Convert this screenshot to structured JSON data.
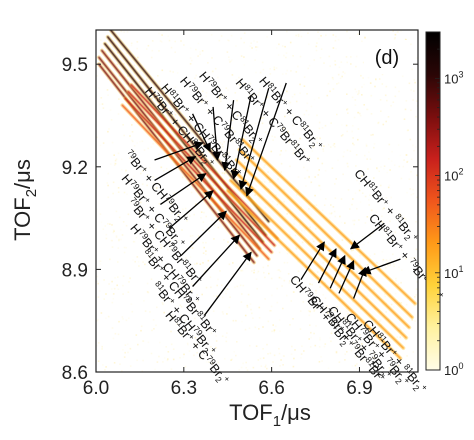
{
  "chart_data": {
    "type": "heatmap",
    "panel_label": "(d)",
    "xlabel": {
      "main": "TOF",
      "sub": "1",
      "unit": "/μs"
    },
    "ylabel": {
      "main": "TOF",
      "sub": "2",
      "unit": "/μs"
    },
    "xlim": [
      6.0,
      7.1
    ],
    "ylim": [
      8.6,
      9.6
    ],
    "x_ticks": [
      "6.0",
      "6.3",
      "6.6",
      "6.9"
    ],
    "y_ticks": [
      "8.6",
      "8.9",
      "9.2",
      "9.5"
    ],
    "x_tick_values": [
      6.0,
      6.3,
      6.6,
      6.9
    ],
    "y_tick_values": [
      8.6,
      8.9,
      9.2,
      9.5
    ],
    "colorbar": {
      "scale": "log",
      "range": [
        1,
        3000
      ],
      "ticks": [
        {
          "base": "10",
          "exp": "0",
          "value": 1
        },
        {
          "base": "10",
          "exp": "1",
          "value": 10
        },
        {
          "base": "10",
          "exp": "2",
          "value": 100
        },
        {
          "base": "10",
          "exp": "3",
          "value": 1000
        }
      ],
      "colors": [
        "#fffde8",
        "#fff2a0",
        "#ffd23a",
        "#ff9a18",
        "#f0561c",
        "#c8201c",
        "#7a0e0e",
        "#2a0606",
        "#000000"
      ]
    },
    "channels": [
      {
        "name": "H81Br+ + C81Br2+",
        "x0": 6.05,
        "y0": 9.6,
        "x1": 6.59,
        "y1": 9.04,
        "intensity": 0.95
      },
      {
        "name": "H81Br+ + C79Br81Br+",
        "x0": 6.04,
        "y0": 9.58,
        "x1": 6.58,
        "y1": 9.0,
        "intensity": 0.9
      },
      {
        "name": "H79Br+ + C81Br2+",
        "x0": 6.03,
        "y0": 9.56,
        "x1": 6.57,
        "y1": 8.98,
        "intensity": 0.9
      },
      {
        "name": "H79Br+ + C79Br81Br+",
        "x0": 6.02,
        "y0": 9.54,
        "x1": 6.56,
        "y1": 8.96,
        "intensity": 0.85
      },
      {
        "name": "H81Br+ + C79Br2+",
        "x0": 6.01,
        "y0": 9.52,
        "x1": 6.55,
        "y1": 8.94,
        "intensity": 0.8
      },
      {
        "name": "H79Br+ + C79Br2+",
        "x0": 6.01,
        "y0": 9.5,
        "x1": 6.54,
        "y1": 8.92,
        "intensity": 0.75
      },
      {
        "name": "79Br+ + CH81Br2+",
        "x0": 6.12,
        "y0": 9.44,
        "x1": 6.62,
        "y1": 8.99,
        "intensity": 0.7
      },
      {
        "name": "79Br+ + CH79Br81Br+",
        "x0": 6.11,
        "y0": 9.42,
        "x1": 6.61,
        "y1": 8.97,
        "intensity": 0.65
      },
      {
        "name": "81Br+ + CH79Br81Br+",
        "x0": 6.1,
        "y0": 9.4,
        "x1": 6.6,
        "y1": 8.95,
        "intensity": 0.6
      },
      {
        "name": "81Br+ + CH79Br2+",
        "x0": 6.09,
        "y0": 9.38,
        "x1": 6.59,
        "y1": 8.93,
        "intensity": 0.55
      },
      {
        "name": "CH81Br+ + 81Br2+",
        "x0": 6.5,
        "y0": 9.28,
        "x1": 7.09,
        "y1": 8.8,
        "intensity": 0.45
      },
      {
        "name": "CH81Br+ + 79Br81Br+",
        "x0": 6.49,
        "y0": 9.25,
        "x1": 7.08,
        "y1": 8.76,
        "intensity": 0.42
      },
      {
        "name": "CH79Br+ + 81Br2+",
        "x0": 6.48,
        "y0": 9.22,
        "x1": 7.07,
        "y1": 8.73,
        "intensity": 0.4
      },
      {
        "name": "CH79Br+ + 79Br81Br+",
        "x0": 6.47,
        "y0": 9.19,
        "x1": 7.06,
        "y1": 8.7,
        "intensity": 0.4
      },
      {
        "name": "CH81Br+ + 79Br2+",
        "x0": 6.46,
        "y0": 9.16,
        "x1": 7.05,
        "y1": 8.67,
        "intensity": 0.38
      },
      {
        "name": "CH79Br+ + 79Br2+",
        "x0": 6.45,
        "y0": 9.13,
        "x1": 7.04,
        "y1": 8.64,
        "intensity": 0.35
      }
    ],
    "annotations": [
      {
        "id": "a1",
        "parts": [
          [
            "H",
            ""
          ],
          [
            "81",
            "sup"
          ],
          [
            "Br",
            ""
          ],
          [
            "+",
            "sup"
          ],
          [
            " + C",
            ""
          ],
          [
            "81",
            "sup"
          ],
          [
            "Br",
            ""
          ],
          [
            "2",
            "sub"
          ],
          [
            "+",
            "sup"
          ]
        ],
        "tx": 6.555,
        "ty": 9.45,
        "rot": 50,
        "ax": 6.65,
        "ay": 9.445,
        "hx": 6.515,
        "hy": 9.115
      },
      {
        "id": "a2",
        "parts": [
          [
            "H",
            ""
          ],
          [
            "81",
            "sup"
          ],
          [
            "Br",
            ""
          ],
          [
            "+",
            "sup"
          ],
          [
            " + C",
            ""
          ],
          [
            "79",
            "sup"
          ],
          [
            "Br",
            ""
          ],
          [
            "81",
            "sup"
          ],
          [
            "Br",
            ""
          ],
          [
            "+",
            "sup"
          ]
        ],
        "tx": 6.475,
        "ty": 9.445,
        "rot": 50,
        "ax": 6.59,
        "ay": 9.43,
        "hx": 6.495,
        "hy": 9.135
      },
      {
        "id": "a3",
        "parts": [
          [
            "H",
            ""
          ],
          [
            "79",
            "sup"
          ],
          [
            "Br",
            ""
          ],
          [
            "+",
            "sup"
          ],
          [
            " + C",
            ""
          ],
          [
            "81",
            "sup"
          ],
          [
            "Br",
            ""
          ],
          [
            "2",
            "sub"
          ],
          [
            "+",
            "sup"
          ]
        ],
        "tx": 6.35,
        "ty": 9.465,
        "rot": 50,
        "ax": 6.53,
        "ay": 9.41,
        "hx": 6.47,
        "hy": 9.165
      },
      {
        "id": "a4",
        "parts": [
          [
            "H",
            ""
          ],
          [
            "79",
            "sup"
          ],
          [
            "Br",
            ""
          ],
          [
            "+",
            "sup"
          ],
          [
            " + C",
            ""
          ],
          [
            "79",
            "sup"
          ],
          [
            "Br",
            ""
          ],
          [
            "81",
            "sup"
          ],
          [
            "Br",
            ""
          ],
          [
            "+",
            "sup"
          ]
        ],
        "tx": 6.285,
        "ty": 9.45,
        "rot": 50,
        "ax": 6.47,
        "ay": 9.395,
        "hx": 6.44,
        "hy": 9.19
      },
      {
        "id": "a5",
        "parts": [
          [
            "H",
            ""
          ],
          [
            "81",
            "sup"
          ],
          [
            "Br",
            ""
          ],
          [
            "+",
            "sup"
          ],
          [
            " + CH",
            ""
          ],
          [
            "79",
            "sup"
          ],
          [
            "Br",
            ""
          ],
          [
            "81",
            "sup"
          ],
          [
            "Br",
            ""
          ],
          [
            "+",
            "sup"
          ]
        ],
        "tx": 6.22,
        "ty": 9.43,
        "rot": 50,
        "ax": 6.4,
        "ay": 9.375,
        "hx": 6.415,
        "hy": 9.22
      },
      {
        "id": "a6",
        "parts": [
          [
            "H",
            ""
          ],
          [
            "79",
            "sup"
          ],
          [
            "Br",
            ""
          ],
          [
            "+",
            "sup"
          ],
          [
            " + CH",
            ""
          ],
          [
            "81",
            "sup"
          ],
          [
            "Br",
            ""
          ],
          [
            "2",
            "sub"
          ],
          [
            "+",
            "sup"
          ]
        ],
        "tx": 6.165,
        "ty": 9.42,
        "rot": 50,
        "ax": 6.33,
        "ay": 9.355,
        "hx": 6.39,
        "hy": 9.245
      },
      {
        "id": "b1",
        "parts": [
          [
            "79",
            "sup"
          ],
          [
            "Br",
            ""
          ],
          [
            "+",
            "sup"
          ],
          [
            " + CH",
            ""
          ],
          [
            "79",
            "sup"
          ],
          [
            "Br",
            ""
          ],
          [
            "2",
            "sub"
          ],
          [
            "+",
            "sup"
          ]
        ],
        "tx": 6.095,
        "ty": 9.235,
        "rot": 50,
        "ax": 6.2,
        "ay": 9.22,
        "hx": 6.365,
        "hy": 9.27
      },
      {
        "id": "b2",
        "parts": [
          [
            "H",
            ""
          ],
          [
            "79",
            "sup"
          ],
          [
            "Br",
            ""
          ],
          [
            "+",
            "sup"
          ],
          [
            " + C",
            ""
          ],
          [
            "79",
            "sup"
          ],
          [
            "Br",
            ""
          ],
          [
            "2",
            "sub"
          ],
          [
            "+",
            "sup"
          ]
        ],
        "tx": 6.085,
        "ty": 9.165,
        "rot": 50,
        "ax": 6.2,
        "ay": 9.16,
        "hx": 6.34,
        "hy": 9.23
      },
      {
        "id": "b3",
        "parts": [
          [
            "79",
            "sup"
          ],
          [
            "Br",
            ""
          ],
          [
            "+",
            "sup"
          ],
          [
            " + CH",
            ""
          ],
          [
            "79",
            "sup"
          ],
          [
            "Br",
            ""
          ],
          [
            "81",
            "sup"
          ],
          [
            "Br",
            ""
          ],
          [
            "+",
            "sup"
          ]
        ],
        "tx": 6.105,
        "ty": 9.095,
        "rot": 50,
        "ax": 6.22,
        "ay": 9.09,
        "hx": 6.375,
        "hy": 9.18
      },
      {
        "id": "b4",
        "parts": [
          [
            "H",
            ""
          ],
          [
            "79",
            "sup"
          ],
          [
            "Br",
            ""
          ],
          [
            "+",
            "sup"
          ],
          [
            " + CH",
            ""
          ],
          [
            "79",
            "sup"
          ],
          [
            "Br",
            ""
          ],
          [
            "2",
            "sub"
          ],
          [
            "+",
            "sup"
          ]
        ],
        "tx": 6.115,
        "ty": 9.02,
        "rot": 50,
        "ax": 6.25,
        "ay": 9.02,
        "hx": 6.4,
        "hy": 9.13
      },
      {
        "id": "b5",
        "parts": [
          [
            "81",
            "sup"
          ],
          [
            "Br",
            ""
          ],
          [
            "+",
            "sup"
          ],
          [
            " + CH",
            ""
          ],
          [
            "79",
            "sup"
          ],
          [
            "Br",
            ""
          ],
          [
            "81",
            "sup"
          ],
          [
            "Br",
            ""
          ],
          [
            "+",
            "sup"
          ]
        ],
        "tx": 6.155,
        "ty": 8.945,
        "rot": 50,
        "ax": 6.29,
        "ay": 8.94,
        "hx": 6.445,
        "hy": 9.07
      },
      {
        "id": "b6",
        "parts": [
          [
            "81",
            "sup"
          ],
          [
            "Br",
            ""
          ],
          [
            "+",
            "sup"
          ],
          [
            " + CH",
            ""
          ],
          [
            "79",
            "sup"
          ],
          [
            "Br",
            ""
          ],
          [
            "2",
            "sub"
          ],
          [
            "+",
            "sup"
          ]
        ],
        "tx": 6.19,
        "ty": 8.85,
        "rot": 50,
        "ax": 6.33,
        "ay": 8.85,
        "hx": 6.49,
        "hy": 9.0
      },
      {
        "id": "b7",
        "parts": [
          [
            "H",
            ""
          ],
          [
            "81",
            "sup"
          ],
          [
            "Br",
            ""
          ],
          [
            "+",
            "sup"
          ],
          [
            " + C",
            ""
          ],
          [
            "79",
            "sup"
          ],
          [
            "Br",
            ""
          ],
          [
            "2",
            "sub"
          ],
          [
            "+",
            "sup"
          ]
        ],
        "tx": 6.235,
        "ty": 8.765,
        "rot": 50,
        "ax": 6.37,
        "ay": 8.765,
        "hx": 6.53,
        "hy": 8.95
      },
      {
        "id": "c1",
        "parts": [
          [
            "CH",
            ""
          ],
          [
            "81",
            "sup"
          ],
          [
            "Br",
            ""
          ],
          [
            "+",
            "sup"
          ],
          [
            " + ",
            ""
          ],
          [
            "81",
            "sup"
          ],
          [
            "Br",
            ""
          ],
          [
            "2",
            "sub"
          ],
          [
            "+",
            "sup"
          ]
        ],
        "tx": 6.88,
        "ty": 9.18,
        "rot": 50,
        "ax": 6.985,
        "ay": 9.035,
        "hx": 6.87,
        "hy": 8.96
      },
      {
        "id": "c2",
        "parts": [
          [
            "CH",
            ""
          ],
          [
            "81",
            "sup"
          ],
          [
            "Br",
            ""
          ],
          [
            "+",
            "sup"
          ],
          [
            " + ",
            ""
          ],
          [
            "79",
            "sup"
          ],
          [
            "Br",
            ""
          ],
          [
            "81",
            "sup"
          ],
          [
            "Br",
            ""
          ],
          [
            "+",
            "sup"
          ]
        ],
        "tx": 6.93,
        "ty": 9.05,
        "rot": 50,
        "ax": 7.04,
        "ay": 8.93,
        "hx": 6.91,
        "hy": 8.89
      },
      {
        "id": "c3",
        "parts": [
          [
            "CH",
            ""
          ],
          [
            "79",
            "sup"
          ],
          [
            "Br",
            ""
          ],
          [
            "+",
            "sup"
          ],
          [
            " + ",
            ""
          ],
          [
            "81",
            "sup"
          ],
          [
            "Br",
            ""
          ],
          [
            "2",
            "sub"
          ],
          [
            "+",
            "sup"
          ]
        ],
        "tx": 6.66,
        "ty": 8.87,
        "rot": 50,
        "ax": 6.7,
        "ay": 8.87,
        "hx": 6.78,
        "hy": 8.98
      },
      {
        "id": "c4",
        "parts": [
          [
            "CH",
            ""
          ],
          [
            "79",
            "sup"
          ],
          [
            "Br",
            ""
          ],
          [
            "+",
            "sup"
          ],
          [
            " + ",
            ""
          ],
          [
            "79",
            "sup"
          ],
          [
            "Br",
            ""
          ],
          [
            "81",
            "sup"
          ],
          [
            "Br",
            ""
          ],
          [
            "+",
            "sup"
          ]
        ],
        "tx": 6.73,
        "ty": 8.81,
        "rot": 50,
        "ax": 6.76,
        "ay": 8.86,
        "hx": 6.82,
        "hy": 8.96
      },
      {
        "id": "c5",
        "parts": [
          [
            "CH",
            ""
          ],
          [
            "81",
            "sup"
          ],
          [
            "Br",
            ""
          ],
          [
            "+",
            "sup"
          ],
          [
            " + ",
            ""
          ],
          [
            "79",
            "sup"
          ],
          [
            "Br",
            ""
          ],
          [
            "2",
            "sub"
          ],
          [
            "+",
            "sup"
          ]
        ],
        "tx": 6.79,
        "ty": 8.78,
        "rot": 50,
        "ax": 6.8,
        "ay": 8.845,
        "hx": 6.85,
        "hy": 8.94
      },
      {
        "id": "c6",
        "parts": [
          [
            "CH",
            ""
          ],
          [
            "79",
            "sup"
          ],
          [
            "Br",
            ""
          ],
          [
            "+",
            "sup"
          ],
          [
            " + ",
            ""
          ],
          [
            "79",
            "sup"
          ],
          [
            "Br",
            ""
          ],
          [
            "2",
            "sub"
          ],
          [
            "+",
            "sup"
          ]
        ],
        "tx": 6.85,
        "ty": 8.76,
        "rot": 50,
        "ax": 6.83,
        "ay": 8.83,
        "hx": 6.88,
        "hy": 8.925
      },
      {
        "id": "c7",
        "parts": [
          [
            "CH",
            ""
          ],
          [
            "81",
            "sup"
          ],
          [
            "Br",
            ""
          ],
          [
            "+",
            "sup"
          ],
          [
            " + ",
            ""
          ],
          [
            "81",
            "sup"
          ],
          [
            "Br",
            ""
          ],
          [
            "2",
            "sub"
          ],
          [
            "+",
            "sup"
          ]
        ],
        "tx": 6.91,
        "ty": 8.74,
        "rot": 50,
        "ax": 6.88,
        "ay": 8.815,
        "hx": 6.92,
        "hy": 8.905
      }
    ]
  }
}
